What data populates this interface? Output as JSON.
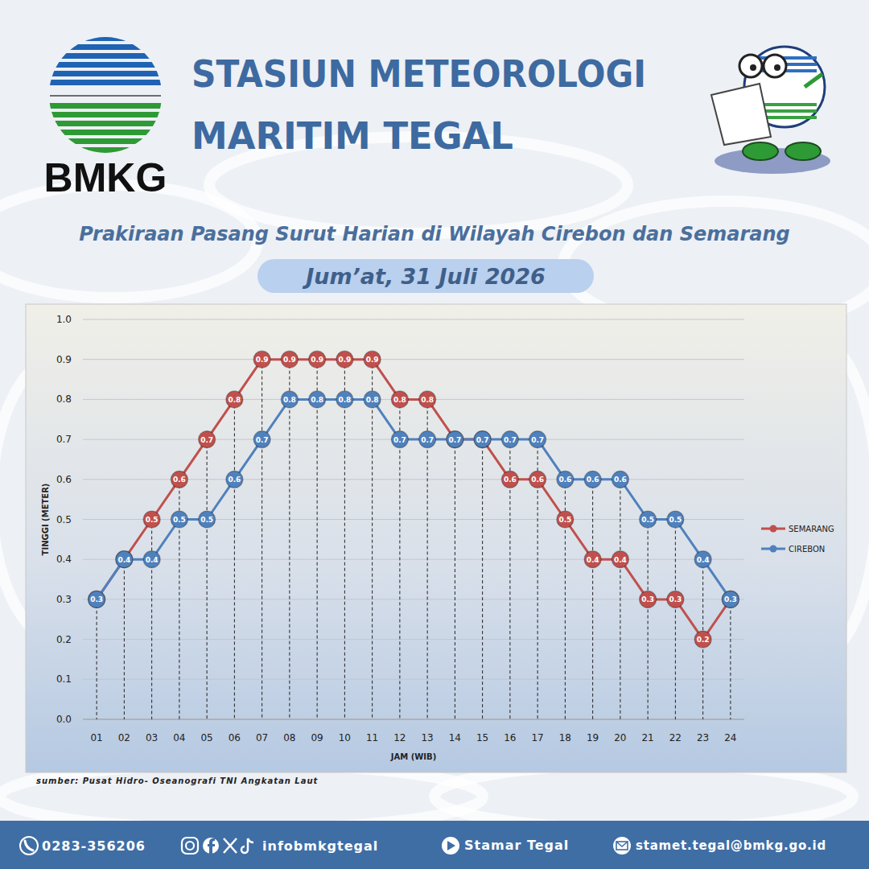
{
  "header": {
    "logo_text": "BMKG",
    "title_lines": [
      "STASIUN METEOROLOGI",
      "MARITIM TEGAL"
    ]
  },
  "chart_data": {
    "type": "line",
    "title": "Prakiraan Pasang Surut Harian di Wilayah Cirebon dan Semarang",
    "subtitle": "Jum’at, 31 Juli 2026",
    "x_label": "JAM (WIB)",
    "y_label": "TINGGI (METER)",
    "categories": [
      "01",
      "02",
      "03",
      "04",
      "05",
      "06",
      "07",
      "08",
      "09",
      "10",
      "11",
      "12",
      "13",
      "14",
      "15",
      "16",
      "17",
      "18",
      "19",
      "20",
      "21",
      "22",
      "23",
      "24"
    ],
    "series": [
      {
        "name": "SEMARANG",
        "color": "#c0504d",
        "values": [
          0.3,
          0.4,
          0.5,
          0.6,
          0.7,
          0.8,
          0.9,
          0.9,
          0.9,
          0.9,
          0.9,
          0.8,
          0.8,
          0.7,
          0.7,
          0.6,
          0.6,
          0.5,
          0.4,
          0.4,
          0.3,
          0.3,
          0.2,
          0.3
        ]
      },
      {
        "name": "CIREBON",
        "color": "#4f81bd",
        "values": [
          0.3,
          0.4,
          0.4,
          0.5,
          0.5,
          0.6,
          0.7,
          0.8,
          0.8,
          0.8,
          0.8,
          0.7,
          0.7,
          0.7,
          0.7,
          0.7,
          0.7,
          0.6,
          0.6,
          0.6,
          0.5,
          0.5,
          0.4,
          0.3
        ]
      }
    ],
    "ylim": [
      0,
      1
    ],
    "yticks": [
      {
        "value": 0,
        "label": "0.0"
      },
      0.1,
      0.2,
      0.3,
      0.4,
      0.5,
      0.6,
      0.7,
      0.8,
      0.9,
      {
        "value": 1,
        "label": "1.0"
      }
    ],
    "grid": true,
    "legend": "right",
    "data_labels": true,
    "marker": "circle",
    "source": "sumber: Pusat Hidro- Oseanografi TNI Angkatan Laut"
  },
  "footer": {
    "phone": "0283-356206",
    "social": "infobmkgtegal",
    "youtube": "Stamar Tegal",
    "email": "stamet.tegal@bmkg.go.id"
  }
}
